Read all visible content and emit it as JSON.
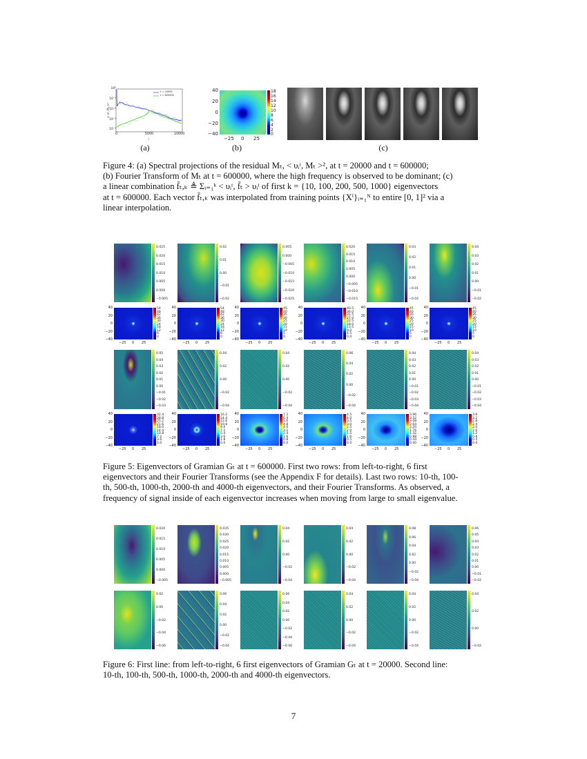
{
  "page_number": "7",
  "figure4": {
    "sublabels": [
      "(a)",
      "(b)",
      "(c)"
    ],
    "caption_parts": {
      "p1": "Figure 4: (a) Spectral projections of the residual ",
      "p2": "(b) Fourier Transform of ",
      "p3": "a linear combination ",
      "p4": "at ",
      "p5": "linear interpolation."
    },
    "caption": "Figure 4: (a) Spectral projections of the residual M_t, < υ_i^t, M_t >^2, at t = 20000 and t = 600000; (b) Fourier Transform of M_t at t = 600000, where the high frequency is observed to be dominant; (c) a linear combination f̄_{t,k} ≜ Σ_{i=1}^{k} < υ_i^t, f̄_t > υ_i^t of first k = {10, 100, 200, 500, 1000} eigenvectors at t = 600000. Each vector f̄_{t,k} was interpolated from training points {X^i}_{i=1}^N to entire [0,1]^2 via a linear interpolation.",
    "caption_lines": [
      "Figure 4: (a) Spectral projections of the residual Mₜ, < υᵢᵗ, Mₜ >², at t = 20000 and t = 600000;",
      "(b) Fourier Transform of Mₜ at t = 600000, where the high frequency is observed to be dominant; (c)",
      "a linear combination f̄ₜ,ₖ ≜ Σᵢ₌₁ᵏ < υᵢᵗ, f̄ₜ > υᵢᵗ of first k = {10, 100, 200, 500, 1000} eigenvectors",
      "at t = 600000. Each vector f̄ₜ,ₖ was interpolated from training points {Xⁱ}ᵢ₌₁ᴺ to entire [0, 1]² via a",
      "linear interpolation."
    ],
    "panel_b": {
      "colorbar_ticks": [
        "18",
        "16",
        "14",
        "12",
        "10",
        "8",
        "6",
        "4",
        "2",
        "0"
      ],
      "yticks": [
        "40",
        "20",
        "0",
        "−20",
        "−40"
      ],
      "xticks": [
        "−25",
        "0",
        "25"
      ]
    },
    "panel_c": {
      "k_values": [
        "10",
        "100",
        "200",
        "500",
        "1000"
      ]
    }
  },
  "chart_data": {
    "type": "line",
    "title": "",
    "xlabel": "i",
    "ylabel": "< υᵢᵗ, Mₜ >²",
    "yscale": "log",
    "xlim": [
      0,
      10000
    ],
    "ylim": [
      5e-05,
      1
    ],
    "xticks": [
      "0",
      "5000",
      "10000"
    ],
    "yticks": [
      "10⁰",
      "10⁻¹",
      "10⁻²",
      "10⁻³",
      "10⁻⁴"
    ],
    "legend_position": "upper right",
    "series": [
      {
        "name": "t = 20000",
        "color": "#4a55d8",
        "x": [
          0,
          100,
          300,
          1000,
          2000,
          3000,
          4000,
          5000,
          6000,
          7000,
          8000,
          9000,
          10000
        ],
        "values": [
          1.0,
          0.03,
          0.02,
          0.05,
          0.035,
          0.025,
          0.017,
          0.012,
          0.008,
          0.005,
          0.003,
          0.0025,
          0.002
        ]
      },
      {
        "name": "t = 600000",
        "color": "#5cc83c",
        "x": [
          0,
          500,
          1000,
          2000,
          3000,
          4000,
          5000,
          6000,
          7000,
          8000,
          9000,
          10000
        ],
        "values": [
          0.0001,
          0.00015,
          0.0002,
          0.0004,
          0.0008,
          0.0015,
          0.003,
          0.008,
          0.005,
          0.003,
          0.0018,
          0.001
        ]
      }
    ]
  },
  "figure5": {
    "caption_lines": [
      "Figure 5: Eigenvectors of Gramian Gₜ at t = 600000. First two rows: from left-to-right, 6 first",
      "eigenvectors and their Fourier Transforms (see the Appendix F for details). Last two rows: 10-th, 100-",
      "th, 500-th, 1000-th, 2000-th and 4000-th eigenvectors, and their Fourier Transforms. As observed, a",
      "frequency of signal inside of each eigenvector increases when moving from large to small eigenvalue."
    ],
    "fft_axes": {
      "yticks": [
        "40",
        "20",
        "0",
        "−20",
        "−40"
      ],
      "xticks": [
        "−25",
        "0",
        "25"
      ]
    },
    "row1_colorbars": [
      [
        "0.025",
        "0.020",
        "0.015",
        "0.010",
        "0.005",
        "0.000",
        "−0.005"
      ],
      [
        "0.02",
        "0.01",
        "0.00",
        "−0.01",
        "−0.02"
      ],
      [
        "0.005",
        "0.000",
        "−0.005",
        "−0.010",
        "−0.015",
        "−0.020",
        "−0.025"
      ],
      [
        "0.020",
        "0.015",
        "0.010",
        "0.005",
        "0.000",
        "−0.005",
        "−0.010",
        "−0.015"
      ],
      [
        "0.03",
        "0.02",
        "0.01",
        "0.00",
        "−0.01",
        "−0.02"
      ],
      [
        "0.04",
        "0.03",
        "0.02",
        "0.01",
        "0.00",
        "−0.01",
        "−0.02"
      ]
    ],
    "row2_colorbars": [
      [
        "54",
        "48",
        "42",
        "36",
        "30",
        "24",
        "18",
        "12",
        "6",
        "0"
      ],
      [
        "54",
        "48",
        "42",
        "36",
        "30",
        "24",
        "18",
        "12",
        "6",
        "0"
      ],
      [
        "45",
        "40",
        "35",
        "30",
        "25",
        "20",
        "15",
        "10",
        "5",
        "0"
      ],
      [
        "40.5",
        "36.0",
        "31.5",
        "27.0",
        "22.5",
        "18.0",
        "13.5",
        "9.0",
        "4.5",
        "0.0"
      ],
      [
        "45",
        "40",
        "35",
        "30",
        "25",
        "20",
        "15",
        "10",
        "5",
        "0"
      ],
      [
        "45",
        "40",
        "35",
        "30",
        "25",
        "20",
        "15",
        "10",
        "5",
        "0"
      ]
    ],
    "row3_colorbars": [
      [
        "0.05",
        "0.04",
        "0.03",
        "0.02",
        "0.01",
        "0.00",
        "−0.01",
        "−0.02",
        "−0.03"
      ],
      [
        "0.04",
        "0.02",
        "0.00",
        "−0.02",
        "−0.04"
      ],
      [
        "0.04",
        "0.02",
        "0.00",
        "−0.02",
        "−0.04"
      ],
      [
        "0.06",
        "0.04",
        "0.02",
        "0.00",
        "−0.02",
        "−0.04"
      ],
      [
        "0.04",
        "0.03",
        "0.02",
        "0.01",
        "0.00",
        "−0.01",
        "−0.02",
        "−0.03",
        "−0.04"
      ],
      [
        "0.04",
        "0.03",
        "0.02",
        "0.01",
        "0.00",
        "−0.01",
        "−0.02",
        "−0.03",
        "−0.04"
      ]
    ],
    "row4_colorbars": [
      [
        "32.4",
        "28.8",
        "25.2",
        "21.6",
        "18.0",
        "14.4",
        "10.8",
        "7.2",
        "3.6",
        "0.0"
      ],
      [
        "16.2",
        "14.4",
        "12.6",
        "10.8",
        "9.0",
        "7.2",
        "5.4",
        "3.6",
        "1.8",
        "0.0"
      ],
      [
        "7.2",
        "6.4",
        "5.6",
        "4.8",
        "4.0",
        "3.2",
        "2.4",
        "1.6",
        "0.8",
        "0.0"
      ],
      [
        "4.5",
        "4.0",
        "3.5",
        "3.0",
        "2.5",
        "2.0",
        "1.5",
        "1.0",
        "0.5",
        "0.0"
      ],
      [
        "3.96",
        "3.52",
        "3.08",
        "2.64",
        "2.20",
        "1.76",
        "1.32",
        "0.88",
        "0.44",
        "0.00"
      ],
      [
        "3.6",
        "3.2",
        "2.8",
        "2.4",
        "2.0",
        "1.6",
        "1.2",
        "0.8",
        "0.4",
        "0.0"
      ]
    ],
    "row3_eigen_index": [
      "10-th",
      "100-th",
      "500-th",
      "1000-th",
      "2000-th",
      "4000-th"
    ]
  },
  "figure6": {
    "caption_lines": [
      "Figure 6: First line: from left-to-right, 6 first eigenvectors of Gramian Gₜ at t = 20000. Second line:",
      "10-th, 100-th, 500-th, 1000-th, 2000-th and 4000-th eigenvectors."
    ],
    "row1_colorbars": [
      [
        "0.020",
        "0.015",
        "0.010",
        "0.005",
        "0.000",
        "−0.005"
      ],
      [
        "0.035",
        "0.030",
        "0.025",
        "0.020",
        "0.015",
        "0.010",
        "0.005",
        "0.000",
        "−0.005"
      ],
      [
        "0.04",
        "0.02",
        "0.00",
        "−0.02",
        "−0.04"
      ],
      [
        "0.04",
        "0.02",
        "0.00",
        "−0.02",
        "−0.04"
      ],
      [
        "0.08",
        "0.06",
        "0.04",
        "0.02",
        "0.00",
        "−0.02",
        "−0.04"
      ],
      [
        "0.06",
        "0.05",
        "0.04",
        "0.03",
        "0.02",
        "0.01",
        "0.00",
        "−0.01",
        "−0.02"
      ]
    ],
    "row2_colorbars": [
      [
        "0.02",
        "0.00",
        "−0.02",
        "−0.04",
        "−0.06"
      ],
      [
        "0.06",
        "0.04",
        "0.02",
        "0.00",
        "−0.02",
        "−0.04"
      ],
      [
        "0.06",
        "0.04",
        "0.02",
        "0.00",
        "−0.02",
        "−0.04",
        "−0.06"
      ],
      [
        "0.04",
        "0.02",
        "0.00",
        "−0.02",
        "−0.04"
      ],
      [
        "0.04",
        "0.02",
        "0.00",
        "−0.02",
        "−0.04"
      ],
      [
        "0.04",
        "0.02",
        "0.00",
        "−0.02"
      ]
    ]
  }
}
